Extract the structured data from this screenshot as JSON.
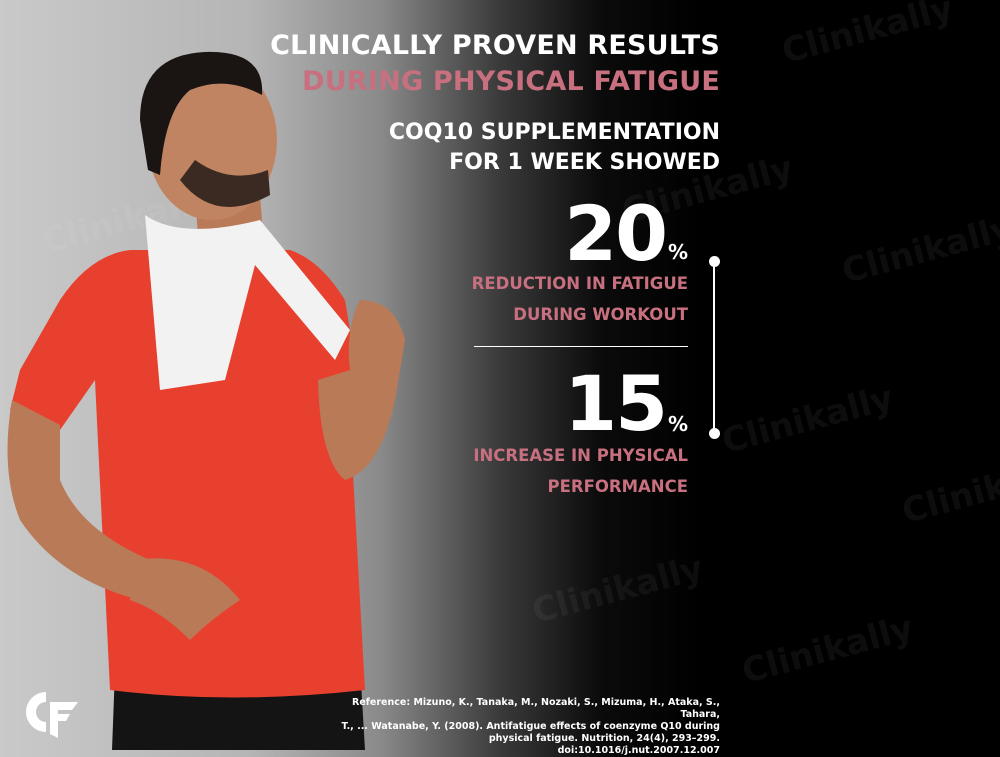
{
  "headline": {
    "line1": "CLINICALLY PROVEN RESULTS",
    "line2": "DURING PHYSICAL FATIGUE"
  },
  "subheadline": {
    "line1": "COQ10 SUPPLEMENTATION",
    "line2": "FOR 1 WEEK SHOWED"
  },
  "stats": [
    {
      "value": "20",
      "unit": "%",
      "label_line1": "REDUCTION IN FATIGUE",
      "label_line2": "DURING WORKOUT"
    },
    {
      "value": "15",
      "unit": "%",
      "label_line1": "INCREASE IN PHYSICAL",
      "label_line2": "PERFORMANCE"
    }
  ],
  "reference": {
    "line1": "Reference: Mizuno, K., Tanaka, M., Nozaki, S., Mizuma, H., Ataka, S., Tahara,",
    "line2": "T., ... Watanabe, Y. (2008). Antifatigue effects of coenzyme Q10 during",
    "line3": "physical fatigue. Nutrition, 24(4), 293–299. doi:10.1016/j.nut.2007.12.007"
  },
  "watermark": "Clinikally",
  "logo": "CF",
  "colors": {
    "accent_pink": "#c8707f",
    "text": "#ffffff",
    "background_dark": "#000000",
    "background_light": "#c9c9c9",
    "shirt": "#e8402e"
  }
}
